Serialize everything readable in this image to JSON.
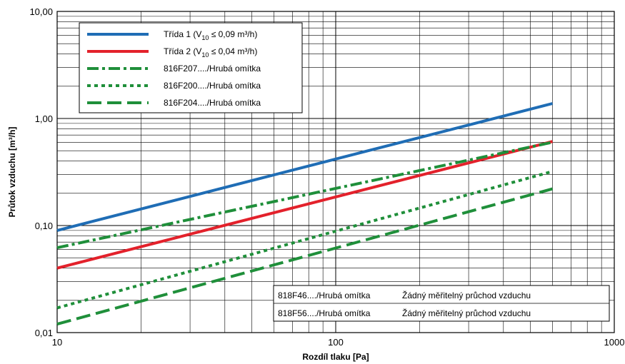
{
  "chart_data": {
    "type": "line",
    "x_scale": "log",
    "y_scale": "log",
    "xlim": [
      10,
      1000
    ],
    "ylim": [
      0.01,
      10
    ],
    "x_ticks": [
      "10",
      "100",
      "1000"
    ],
    "y_ticks": [
      "0,01",
      "0,10",
      "1,00",
      "10,00"
    ],
    "xlabel": "Rozdíl tlaku [Pa]",
    "ylabel": "Průtok vzduchu [m³/h]",
    "grid": true,
    "legend_position": "top-left",
    "series": [
      {
        "name": "Třída 1 (V10 ≤ 0,09 m³/h)",
        "label_main": "Třída 1 (V",
        "label_sub": "10",
        "label_rest": " ≤ 0,09 m³/h)",
        "color": "#1f6db5",
        "dash": "solid",
        "x": [
          10,
          600
        ],
        "y": [
          0.09,
          1.38
        ]
      },
      {
        "name": "Třída 2 (V10 ≤ 0,04 m³/h)",
        "label_main": "Třída 2 (V",
        "label_sub": "10",
        "label_rest": " ≤ 0,04 m³/h)",
        "color": "#e3212b",
        "dash": "solid",
        "x": [
          10,
          600
        ],
        "y": [
          0.04,
          0.61
        ]
      },
      {
        "name": "816F207..../Hrubá omítka",
        "label_main": "816F207..../Hrubá omítka",
        "color": "#1f8f3a",
        "dash": "dashdot",
        "x": [
          10,
          600
        ],
        "y": [
          0.062,
          0.6
        ]
      },
      {
        "name": "816F200..../Hrubá omítka",
        "label_main": "816F200..../Hrubá omítka",
        "color": "#1f8f3a",
        "dash": "dotted",
        "x": [
          10,
          600
        ],
        "y": [
          0.017,
          0.32
        ]
      },
      {
        "name": "816F204..../Hrubá omítka",
        "label_main": "816F204..../Hrubá omítka",
        "color": "#1f8f3a",
        "dash": "dashed",
        "x": [
          10,
          600
        ],
        "y": [
          0.012,
          0.22
        ]
      }
    ],
    "notes": [
      {
        "product": "818F46..../Hrubá omítka",
        "text": "Žádný měřitelný průchod vzduchu"
      },
      {
        "product": "818F56..../Hrubá omítka",
        "text": "Žádný měřitelný průchod vzduchu"
      }
    ]
  }
}
